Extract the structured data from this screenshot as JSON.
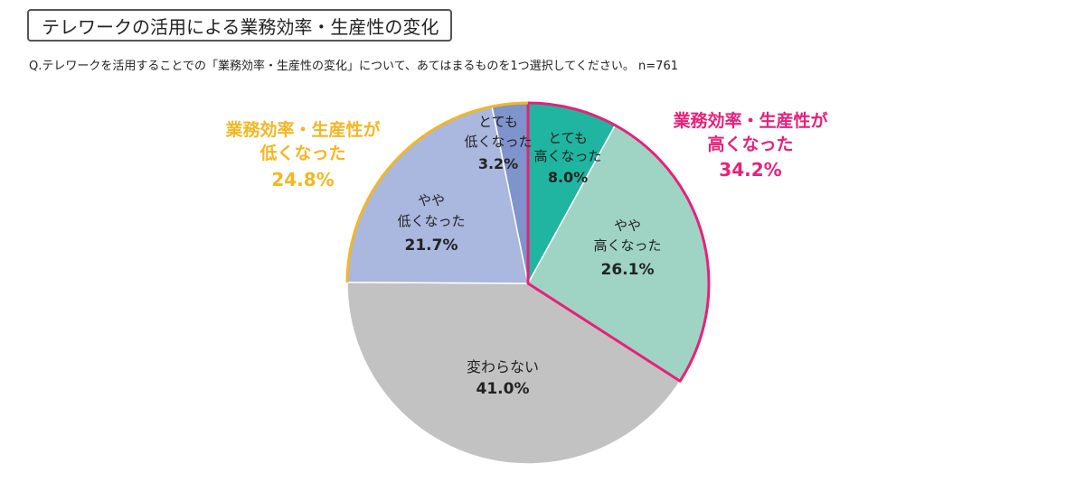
{
  "title": "テレワークの活用による業務効率・生産性の変化",
  "question": "Q.テレワークを活用することでの「業務効率・生産性の変化」について、あてはまるものを1つ選択してください。 n=761",
  "colors": {
    "higher_group": "#e8207a",
    "lower_group": "#f4b622"
  },
  "chart_data": {
    "type": "pie",
    "n": 761,
    "slices": [
      {
        "line1": "とても",
        "line2": "高くなった",
        "value": 8.0,
        "value_label": "8.0%",
        "color": "#20b5a0"
      },
      {
        "line1": "やや",
        "line2": "高くなった",
        "value": 26.1,
        "value_label": "26.1%",
        "color": "#9fd4c5"
      },
      {
        "line1": "変わらない",
        "line2": "",
        "value": 41.0,
        "value_label": "41.0%",
        "color": "#c2c2c2"
      },
      {
        "line1": "やや",
        "line2": "低くなった",
        "value": 21.7,
        "value_label": "21.7%",
        "color": "#aab7de"
      },
      {
        "line1": "とても",
        "line2": "低くなった",
        "value": 3.2,
        "value_label": "3.2%",
        "color": "#7f94cc"
      }
    ],
    "groups": [
      {
        "line1": "業務効率・生産性が",
        "line2": "高くなった",
        "value": 34.2,
        "value_label": "34.2%"
      },
      {
        "line1": "業務効率・生産性が",
        "line2": "低くなった",
        "value": 24.8,
        "value_label": "24.8%"
      }
    ]
  }
}
